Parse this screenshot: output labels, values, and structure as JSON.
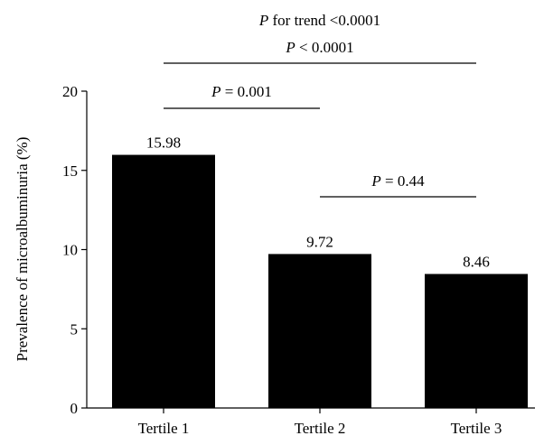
{
  "chart_data": {
    "type": "bar",
    "categories": [
      "Tertile 1",
      "Tertile 2",
      "Tertile 3"
    ],
    "values": [
      15.98,
      9.72,
      8.46
    ],
    "data_labels": [
      "15.98",
      "9.72",
      "8.46"
    ],
    "ylabel": "Prevalence of microalbuminuria (%)",
    "xlabel": "",
    "ylim": [
      0,
      20
    ],
    "yticks": [
      0,
      5,
      10,
      15,
      20
    ],
    "ytick_labels": [
      "0",
      "5",
      "10",
      "15",
      "20"
    ],
    "grid": false,
    "legend": "none",
    "bar_color": "#000000",
    "comparisons": [
      {
        "from": 0,
        "to": 2,
        "p_italic": "P",
        "text": " for trend <0.0001"
      },
      {
        "from": 0,
        "to": 2,
        "p_italic": "P",
        "text": " < 0.0001"
      },
      {
        "from": 0,
        "to": 1,
        "p_italic": "P",
        "text": " = 0.001"
      },
      {
        "from": 1,
        "to": 2,
        "p_italic": "P",
        "text": " = 0.44"
      }
    ]
  }
}
